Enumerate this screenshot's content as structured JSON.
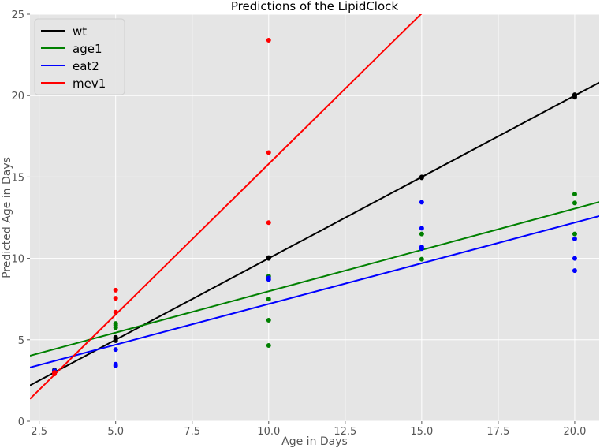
{
  "chart_data": {
    "type": "scatter",
    "title": "Predictions of the LipidClock",
    "xlabel": "Age in Days",
    "ylabel": "Predicted Age in Days",
    "xlim": [
      2.2,
      20.8
    ],
    "ylim": [
      0,
      25
    ],
    "xticks": [
      2.5,
      5.0,
      7.5,
      10.0,
      12.5,
      15.0,
      17.5,
      20.0
    ],
    "xtick_labels": [
      "2.5",
      "5.0",
      "7.5",
      "10.0",
      "12.5",
      "15.0",
      "17.5",
      "20.0"
    ],
    "yticks": [
      0,
      5,
      10,
      15,
      20,
      25
    ],
    "ytick_labels": [
      "0",
      "5",
      "10",
      "15",
      "20",
      "25"
    ],
    "grid": true,
    "legend_position": "top-left",
    "series": [
      {
        "name": "wt",
        "color": "#000000",
        "line": {
          "slope": 1.0,
          "intercept": 0.0
        },
        "points": [
          [
            3,
            3.05
          ],
          [
            3,
            3.15
          ],
          [
            5,
            4.95
          ],
          [
            5,
            5.05
          ],
          [
            5,
            5.15
          ],
          [
            10,
            10.0
          ],
          [
            10,
            10.05
          ],
          [
            15,
            14.95
          ],
          [
            15,
            15.0
          ],
          [
            20,
            19.9
          ],
          [
            20,
            20.0
          ],
          [
            20,
            20.05
          ]
        ]
      },
      {
        "name": "age1",
        "color": "#008000",
        "line": {
          "slope": 0.508,
          "intercept": 2.9
        },
        "points": [
          [
            3,
            3.0
          ],
          [
            3,
            3.1
          ],
          [
            5,
            5.75
          ],
          [
            5,
            5.9
          ],
          [
            5,
            6.0
          ],
          [
            10,
            4.65
          ],
          [
            10,
            6.2
          ],
          [
            10,
            7.5
          ],
          [
            10,
            8.9
          ],
          [
            15,
            9.95
          ],
          [
            15,
            11.5
          ],
          [
            20,
            11.5
          ],
          [
            20,
            13.4
          ],
          [
            20,
            13.95
          ]
        ]
      },
      {
        "name": "eat2",
        "color": "#0000ff",
        "line": {
          "slope": 0.5,
          "intercept": 2.2
        },
        "points": [
          [
            3,
            3.0
          ],
          [
            3,
            3.1
          ],
          [
            5,
            3.4
          ],
          [
            5,
            3.5
          ],
          [
            5,
            4.4
          ],
          [
            10,
            8.7
          ],
          [
            10,
            8.8
          ],
          [
            15,
            10.6
          ],
          [
            15,
            10.7
          ],
          [
            15,
            11.85
          ],
          [
            15,
            13.45
          ],
          [
            20,
            9.25
          ],
          [
            20,
            10.0
          ],
          [
            20,
            11.2
          ]
        ]
      },
      {
        "name": "mev1",
        "color": "#ff0000",
        "line": {
          "slope": 1.85,
          "intercept": -2.7
        },
        "points": [
          [
            3,
            2.9
          ],
          [
            3,
            3.0
          ],
          [
            5,
            6.7
          ],
          [
            5,
            7.55
          ],
          [
            5,
            8.05
          ],
          [
            10,
            12.2
          ],
          [
            10,
            16.5
          ],
          [
            10,
            23.4
          ]
        ]
      }
    ]
  }
}
